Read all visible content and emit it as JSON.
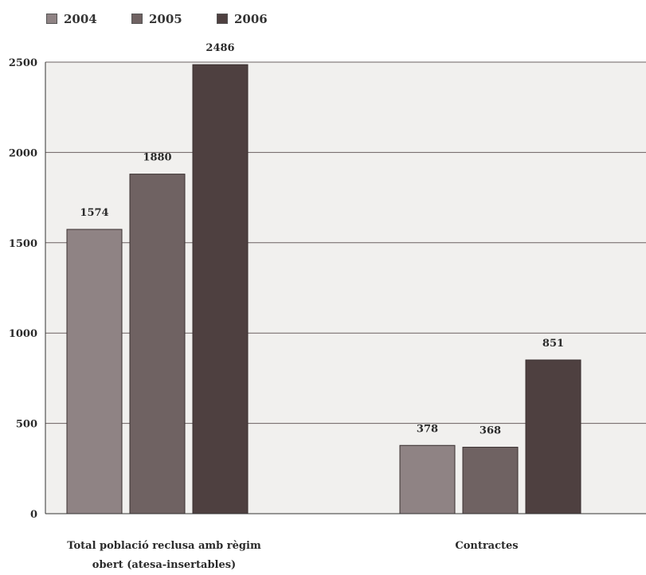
{
  "chart_data": {
    "type": "bar",
    "title": "",
    "xlabel": "",
    "ylabel": "",
    "categories": [
      "Total població reclusa amb règim\nobert (atesa-insertables)",
      "Contractes"
    ],
    "series": [
      {
        "name": "2004",
        "values": [
          1574,
          378
        ]
      },
      {
        "name": "2005",
        "values": [
          1880,
          368
        ]
      },
      {
        "name": "2006",
        "values": [
          2486,
          851
        ]
      }
    ],
    "ylim": [
      0,
      2500
    ],
    "yticks": [
      0,
      500,
      1000,
      1500,
      2000,
      2500
    ],
    "grid": true,
    "legend": "top-left"
  },
  "colors": {
    "series": [
      "#8f8384",
      "#6f6262",
      "#4e4040"
    ],
    "plot_background": "#f1f0ee",
    "gridline": "#6a6060"
  }
}
